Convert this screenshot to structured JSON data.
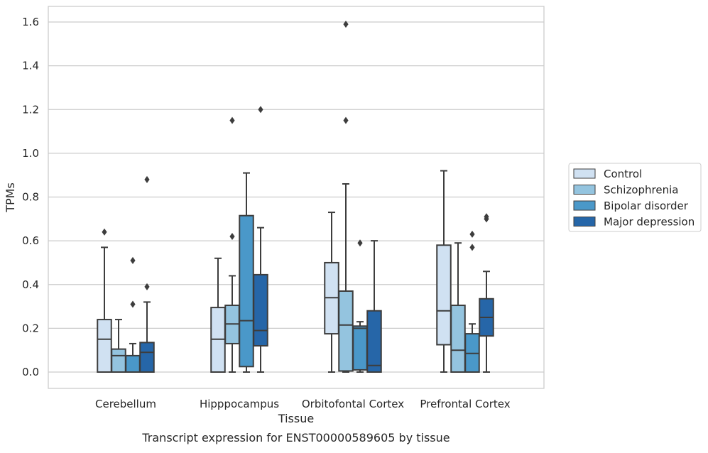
{
  "caption": "Transcript expression for ENST00000589605 by tissue",
  "chart_data": {
    "type": "box",
    "title": "",
    "xlabel": "Tissue",
    "ylabel": "TPMs",
    "ylim": [
      -0.08,
      1.67
    ],
    "yticks": [
      "0.0",
      "0.2",
      "0.4",
      "0.6",
      "0.8",
      "1.0",
      "1.2",
      "1.4",
      "1.6"
    ],
    "grid": "horizontal",
    "legend_position": "right",
    "categories": [
      "Cerebellum",
      "Hipppocampus",
      "Orbitofontal Cortex",
      "Prefrontal Cortex"
    ],
    "series": [
      {
        "name": "Control",
        "color": "#d0e1f2",
        "boxes": [
          {
            "whislo": 0.0,
            "q1": 0.0,
            "med": 0.15,
            "q3": 0.24,
            "whishi": 0.57,
            "fliers": [
              0.64
            ]
          },
          {
            "whislo": 0.0,
            "q1": 0.0,
            "med": 0.15,
            "q3": 0.295,
            "whishi": 0.52,
            "fliers": []
          },
          {
            "whislo": 0.0,
            "q1": 0.175,
            "med": 0.34,
            "q3": 0.5,
            "whishi": 0.73,
            "fliers": []
          },
          {
            "whislo": 0.0,
            "q1": 0.125,
            "med": 0.28,
            "q3": 0.58,
            "whishi": 0.92,
            "fliers": []
          }
        ]
      },
      {
        "name": "Schizophrenia",
        "color": "#94c4df",
        "boxes": [
          {
            "whislo": 0.0,
            "q1": 0.0,
            "med": 0.075,
            "q3": 0.105,
            "whishi": 0.24,
            "fliers": []
          },
          {
            "whislo": 0.0,
            "q1": 0.13,
            "med": 0.22,
            "q3": 0.305,
            "whishi": 0.44,
            "fliers": [
              0.62,
              1.15
            ]
          },
          {
            "whislo": 0.0,
            "q1": 0.005,
            "med": 0.215,
            "q3": 0.37,
            "whishi": 0.86,
            "fliers": [
              1.15,
              1.59
            ]
          },
          {
            "whislo": 0.0,
            "q1": 0.0,
            "med": 0.1,
            "q3": 0.305,
            "whishi": 0.59,
            "fliers": []
          }
        ]
      },
      {
        "name": "Bipolar disorder",
        "color": "#4a98c9",
        "boxes": [
          {
            "whislo": 0.0,
            "q1": 0.0,
            "med": 0.0,
            "q3": 0.075,
            "whishi": 0.13,
            "fliers": [
              0.31,
              0.51
            ]
          },
          {
            "whislo": 0.0,
            "q1": 0.025,
            "med": 0.235,
            "q3": 0.715,
            "whishi": 0.91,
            "fliers": []
          },
          {
            "whislo": 0.0,
            "q1": 0.01,
            "med": 0.2,
            "q3": 0.21,
            "whishi": 0.23,
            "fliers": [
              0.59
            ]
          },
          {
            "whislo": 0.0,
            "q1": 0.0,
            "med": 0.085,
            "q3": 0.175,
            "whishi": 0.22,
            "fliers": [
              0.57,
              0.63
            ]
          }
        ]
      },
      {
        "name": "Major depression",
        "color": "#2666a8",
        "boxes": [
          {
            "whislo": 0.0,
            "q1": 0.0,
            "med": 0.09,
            "q3": 0.135,
            "whishi": 0.32,
            "fliers": [
              0.39,
              0.88
            ]
          },
          {
            "whislo": 0.0,
            "q1": 0.12,
            "med": 0.19,
            "q3": 0.445,
            "whishi": 0.66,
            "fliers": [
              1.2
            ]
          },
          {
            "whislo": 0.0,
            "q1": 0.0,
            "med": 0.03,
            "q3": 0.28,
            "whishi": 0.6,
            "fliers": []
          },
          {
            "whislo": 0.0,
            "q1": 0.165,
            "med": 0.25,
            "q3": 0.335,
            "whishi": 0.46,
            "fliers": [
              0.7,
              0.71
            ]
          }
        ]
      }
    ]
  }
}
